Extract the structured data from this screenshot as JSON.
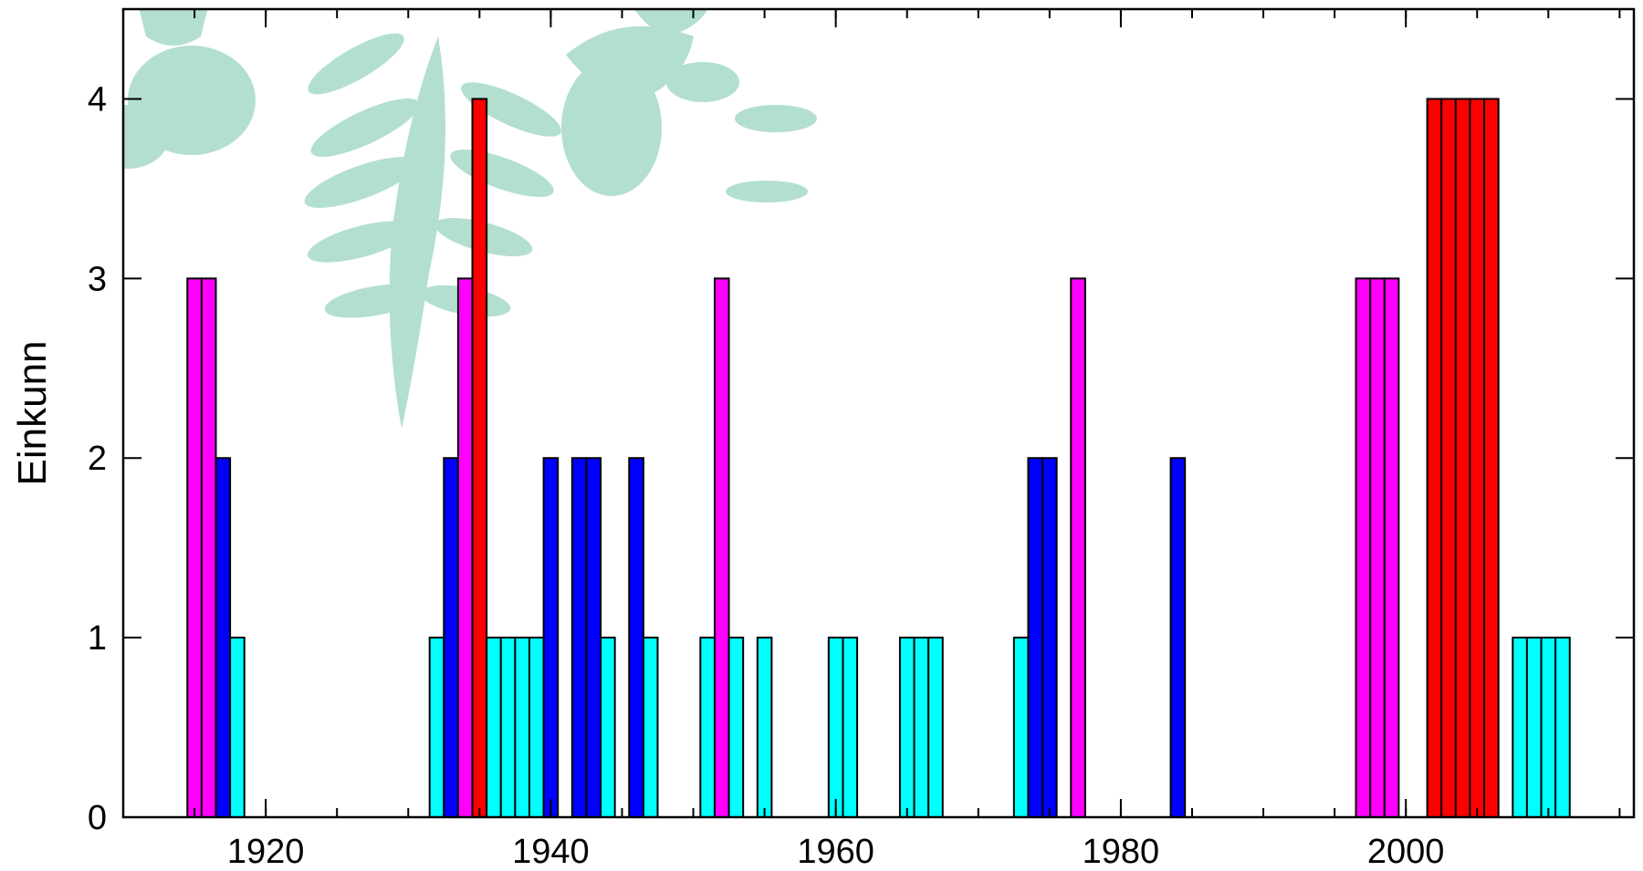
{
  "chart_data": {
    "type": "bar",
    "title": "",
    "xlabel": "",
    "ylabel": "Einkunn",
    "xlim": [
      1910,
      2016
    ],
    "ylim": [
      0,
      4.5
    ],
    "x_ticks": [
      1920,
      1940,
      1960,
      1980,
      2000
    ],
    "y_ticks": [
      0,
      1,
      2,
      3,
      4
    ],
    "grid": false,
    "legend": "none",
    "background_image": "rowan-leaves-and-berries",
    "grade_colors": {
      "1": "#00ffff",
      "2": "#0000ff",
      "3": "#ff00ff",
      "4": "#ff0000"
    },
    "x": [
      1915,
      1916,
      1917,
      1918,
      1932,
      1933,
      1934,
      1935,
      1936,
      1937,
      1938,
      1939,
      1940,
      1942,
      1943,
      1944,
      1946,
      1947,
      1951,
      1952,
      1953,
      1955,
      1960,
      1961,
      1965,
      1966,
      1967,
      1973,
      1974,
      1975,
      1977,
      1984,
      1997,
      1998,
      1999,
      2002,
      2003,
      2004,
      2005,
      2006,
      2008,
      2009,
      2010,
      2011
    ],
    "values": [
      3,
      3,
      2,
      1,
      1,
      2,
      3,
      4,
      1,
      1,
      1,
      1,
      2,
      2,
      2,
      1,
      2,
      1,
      1,
      3,
      1,
      1,
      1,
      1,
      1,
      1,
      1,
      1,
      2,
      2,
      3,
      2,
      3,
      3,
      3,
      4,
      4,
      4,
      4,
      4,
      1,
      1,
      1,
      1
    ]
  }
}
